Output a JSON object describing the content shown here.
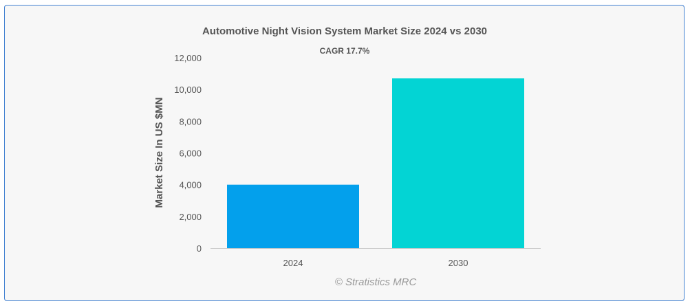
{
  "chart_data": {
    "type": "bar",
    "title": "Automotive Night Vision System Market Size 2024 vs 2030",
    "subtitle": "CAGR 17.7%",
    "xlabel": "",
    "ylabel": "Market Size In US $MN",
    "categories": [
      "2024",
      "2030"
    ],
    "values": [
      4000,
      10700
    ],
    "colors": [
      "#03a0ec",
      "#03d4d4"
    ],
    "ylim": [
      0,
      12000
    ],
    "yticks": [
      "0",
      "2,000",
      "4,000",
      "6,000",
      "8,000",
      "10,000",
      "12,000"
    ],
    "grid": false,
    "legend": "none"
  },
  "credit": "© Stratistics MRC"
}
